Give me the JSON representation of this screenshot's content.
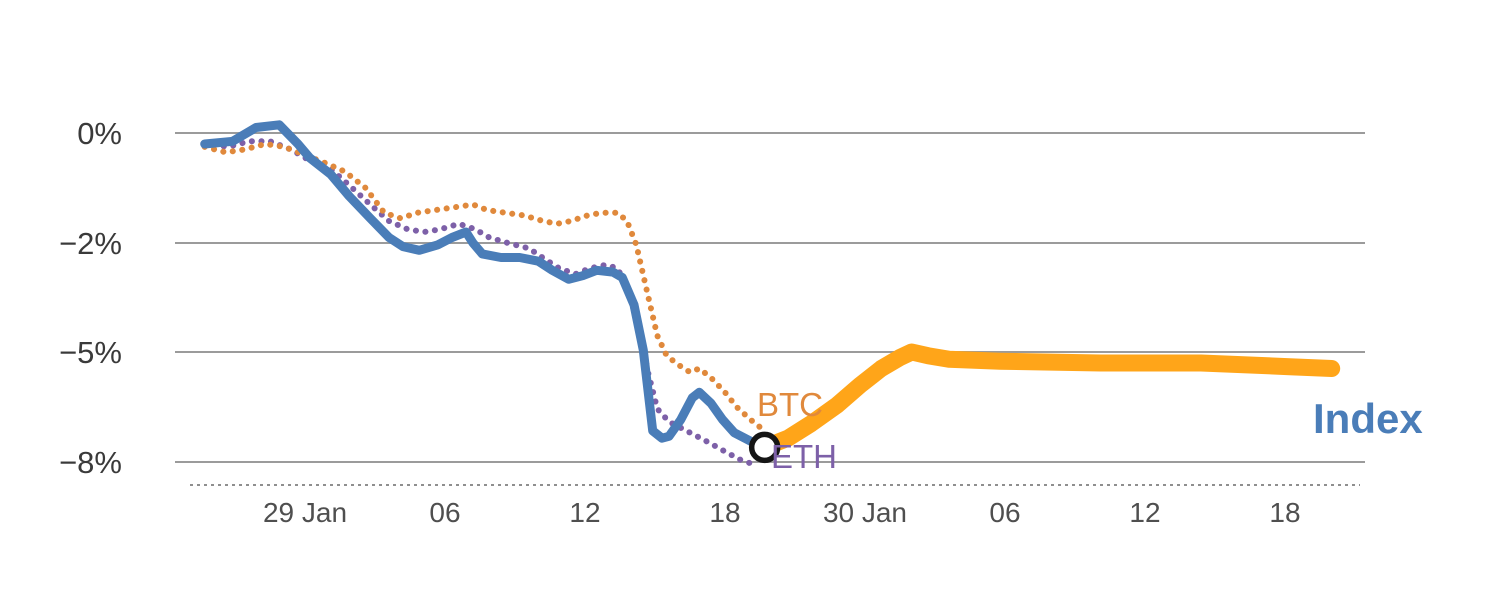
{
  "chart_data": {
    "type": "line",
    "title": "",
    "xlabel": "",
    "ylabel": "",
    "grid": "horizontal-only",
    "legend_position": "inline-labels",
    "xticks": {
      "values": [
        0,
        6,
        12,
        18,
        24,
        30,
        36,
        42
      ],
      "labels": [
        "29 Jan",
        "06",
        "12",
        "18",
        "30 Jan",
        "06",
        "12",
        "18"
      ]
    },
    "yticks": {
      "values": [
        0,
        -2,
        -5,
        -8
      ],
      "labels": [
        "0%",
        "−2%",
        "−5%",
        "−8%"
      ]
    },
    "xlim": [
      -5,
      45.5
    ],
    "ylim": [
      -8.6,
      0.7
    ],
    "colors": {
      "grid": "#9b9b9b",
      "axis_dash": "#8f8f8f",
      "x_tick_text": "#4f4f4f",
      "y_tick_text": "#3a3a3a",
      "background": "#ffffff"
    },
    "series": [
      {
        "name": "ETH",
        "color": "#7d60a8",
        "style": "dotted",
        "width": 6,
        "points": [
          [
            -4.3,
            -0.2
          ],
          [
            -3.3,
            -0.25
          ],
          [
            -2.4,
            -0.15
          ],
          [
            -1.5,
            -0.15
          ],
          [
            -0.6,
            -0.3
          ],
          [
            0.2,
            -0.5
          ],
          [
            1.1,
            -0.65
          ],
          [
            1.9,
            -0.95
          ],
          [
            2.8,
            -1.3
          ],
          [
            3.6,
            -1.6
          ],
          [
            4.4,
            -1.75
          ],
          [
            5.1,
            -1.8
          ],
          [
            5.8,
            -1.75
          ],
          [
            6.6,
            -1.65
          ],
          [
            7.3,
            -1.75
          ],
          [
            7.9,
            -1.9
          ],
          [
            8.7,
            -2.0
          ],
          [
            9.6,
            -2.15
          ],
          [
            10.3,
            -2.45
          ],
          [
            10.9,
            -2.7
          ],
          [
            11.6,
            -2.85
          ],
          [
            12.2,
            -2.7
          ],
          [
            12.9,
            -2.6
          ],
          [
            13.4,
            -2.7
          ],
          [
            13.8,
            -3.25
          ],
          [
            14.3,
            -4.25
          ],
          [
            14.7,
            -5.55
          ],
          [
            15.1,
            -6.55
          ],
          [
            15.6,
            -6.9
          ],
          [
            16.2,
            -7.1
          ],
          [
            16.8,
            -7.3
          ],
          [
            17.4,
            -7.5
          ],
          [
            18.1,
            -7.75
          ],
          [
            18.7,
            -7.95
          ],
          [
            19.4,
            -8.1
          ]
        ]
      },
      {
        "name": "BTC",
        "color": "#e0893c",
        "style": "dotted",
        "width": 6,
        "points": [
          [
            -4.3,
            -0.25
          ],
          [
            -3.4,
            -0.35
          ],
          [
            -2.6,
            -0.3
          ],
          [
            -1.7,
            -0.2
          ],
          [
            -0.9,
            -0.25
          ],
          [
            0.0,
            -0.4
          ],
          [
            0.9,
            -0.55
          ],
          [
            1.7,
            -0.7
          ],
          [
            2.6,
            -1.0
          ],
          [
            3.4,
            -1.45
          ],
          [
            4.1,
            -1.55
          ],
          [
            4.8,
            -1.45
          ],
          [
            5.6,
            -1.4
          ],
          [
            6.4,
            -1.35
          ],
          [
            7.2,
            -1.3
          ],
          [
            7.8,
            -1.4
          ],
          [
            8.6,
            -1.45
          ],
          [
            9.4,
            -1.5
          ],
          [
            10.2,
            -1.6
          ],
          [
            10.8,
            -1.65
          ],
          [
            11.4,
            -1.6
          ],
          [
            12.1,
            -1.5
          ],
          [
            12.7,
            -1.45
          ],
          [
            13.4,
            -1.45
          ],
          [
            13.8,
            -1.6
          ],
          [
            14.2,
            -2.05
          ],
          [
            14.7,
            -3.45
          ],
          [
            15.1,
            -4.55
          ],
          [
            15.5,
            -5.1
          ],
          [
            16.0,
            -5.35
          ],
          [
            16.5,
            -5.55
          ],
          [
            16.9,
            -5.45
          ],
          [
            17.4,
            -5.7
          ],
          [
            18.0,
            -6.1
          ],
          [
            18.5,
            -6.5
          ],
          [
            19.1,
            -6.85
          ],
          [
            19.6,
            -7.1
          ]
        ]
      },
      {
        "name": "Index",
        "color": "#4a7db8",
        "style": "solid",
        "width": 9,
        "points": [
          [
            -4.3,
            -0.2
          ],
          [
            -3.1,
            -0.15
          ],
          [
            -2.1,
            0.1
          ],
          [
            -1.1,
            0.15
          ],
          [
            -0.3,
            -0.2
          ],
          [
            0.2,
            -0.45
          ],
          [
            1.1,
            -0.75
          ],
          [
            1.9,
            -1.15
          ],
          [
            2.8,
            -1.55
          ],
          [
            3.6,
            -1.9
          ],
          [
            4.2,
            -2.1
          ],
          [
            4.9,
            -2.2
          ],
          [
            5.7,
            -2.05
          ],
          [
            6.3,
            -1.9
          ],
          [
            6.9,
            -1.8
          ],
          [
            7.2,
            -2.0
          ],
          [
            7.6,
            -2.3
          ],
          [
            8.4,
            -2.4
          ],
          [
            9.2,
            -2.4
          ],
          [
            10.0,
            -2.5
          ],
          [
            10.6,
            -2.75
          ],
          [
            11.3,
            -3.0
          ],
          [
            11.9,
            -2.9
          ],
          [
            12.5,
            -2.75
          ],
          [
            13.2,
            -2.8
          ],
          [
            13.6,
            -2.95
          ],
          [
            14.1,
            -3.7
          ],
          [
            14.5,
            -4.95
          ],
          [
            14.9,
            -7.15
          ],
          [
            15.3,
            -7.35
          ],
          [
            15.6,
            -7.3
          ],
          [
            16.1,
            -6.85
          ],
          [
            16.6,
            -6.25
          ],
          [
            16.9,
            -6.1
          ],
          [
            17.4,
            -6.4
          ],
          [
            17.9,
            -6.85
          ],
          [
            18.4,
            -7.2
          ],
          [
            19.0,
            -7.4
          ],
          [
            19.6,
            -7.6
          ]
        ]
      },
      {
        "name": "Index-projection",
        "color": "#ffa519",
        "style": "solid",
        "width": 17,
        "points": [
          [
            19.7,
            -7.6
          ],
          [
            20.7,
            -7.35
          ],
          [
            21.7,
            -6.95
          ],
          [
            22.8,
            -6.45
          ],
          [
            23.8,
            -5.9
          ],
          [
            24.7,
            -5.45
          ],
          [
            25.5,
            -5.15
          ],
          [
            26.0,
            -5.0
          ],
          [
            26.7,
            -5.1
          ],
          [
            27.6,
            -5.2
          ],
          [
            29.8,
            -5.25
          ],
          [
            34.1,
            -5.3
          ],
          [
            38.4,
            -5.3
          ],
          [
            42.2,
            -5.4
          ],
          [
            44.0,
            -5.45
          ]
        ]
      }
    ],
    "marker": {
      "x": 19.7,
      "y": -7.6,
      "shape": "circle",
      "color": "#151515",
      "fill": "#ffffff",
      "radius_px": 13
    }
  }
}
